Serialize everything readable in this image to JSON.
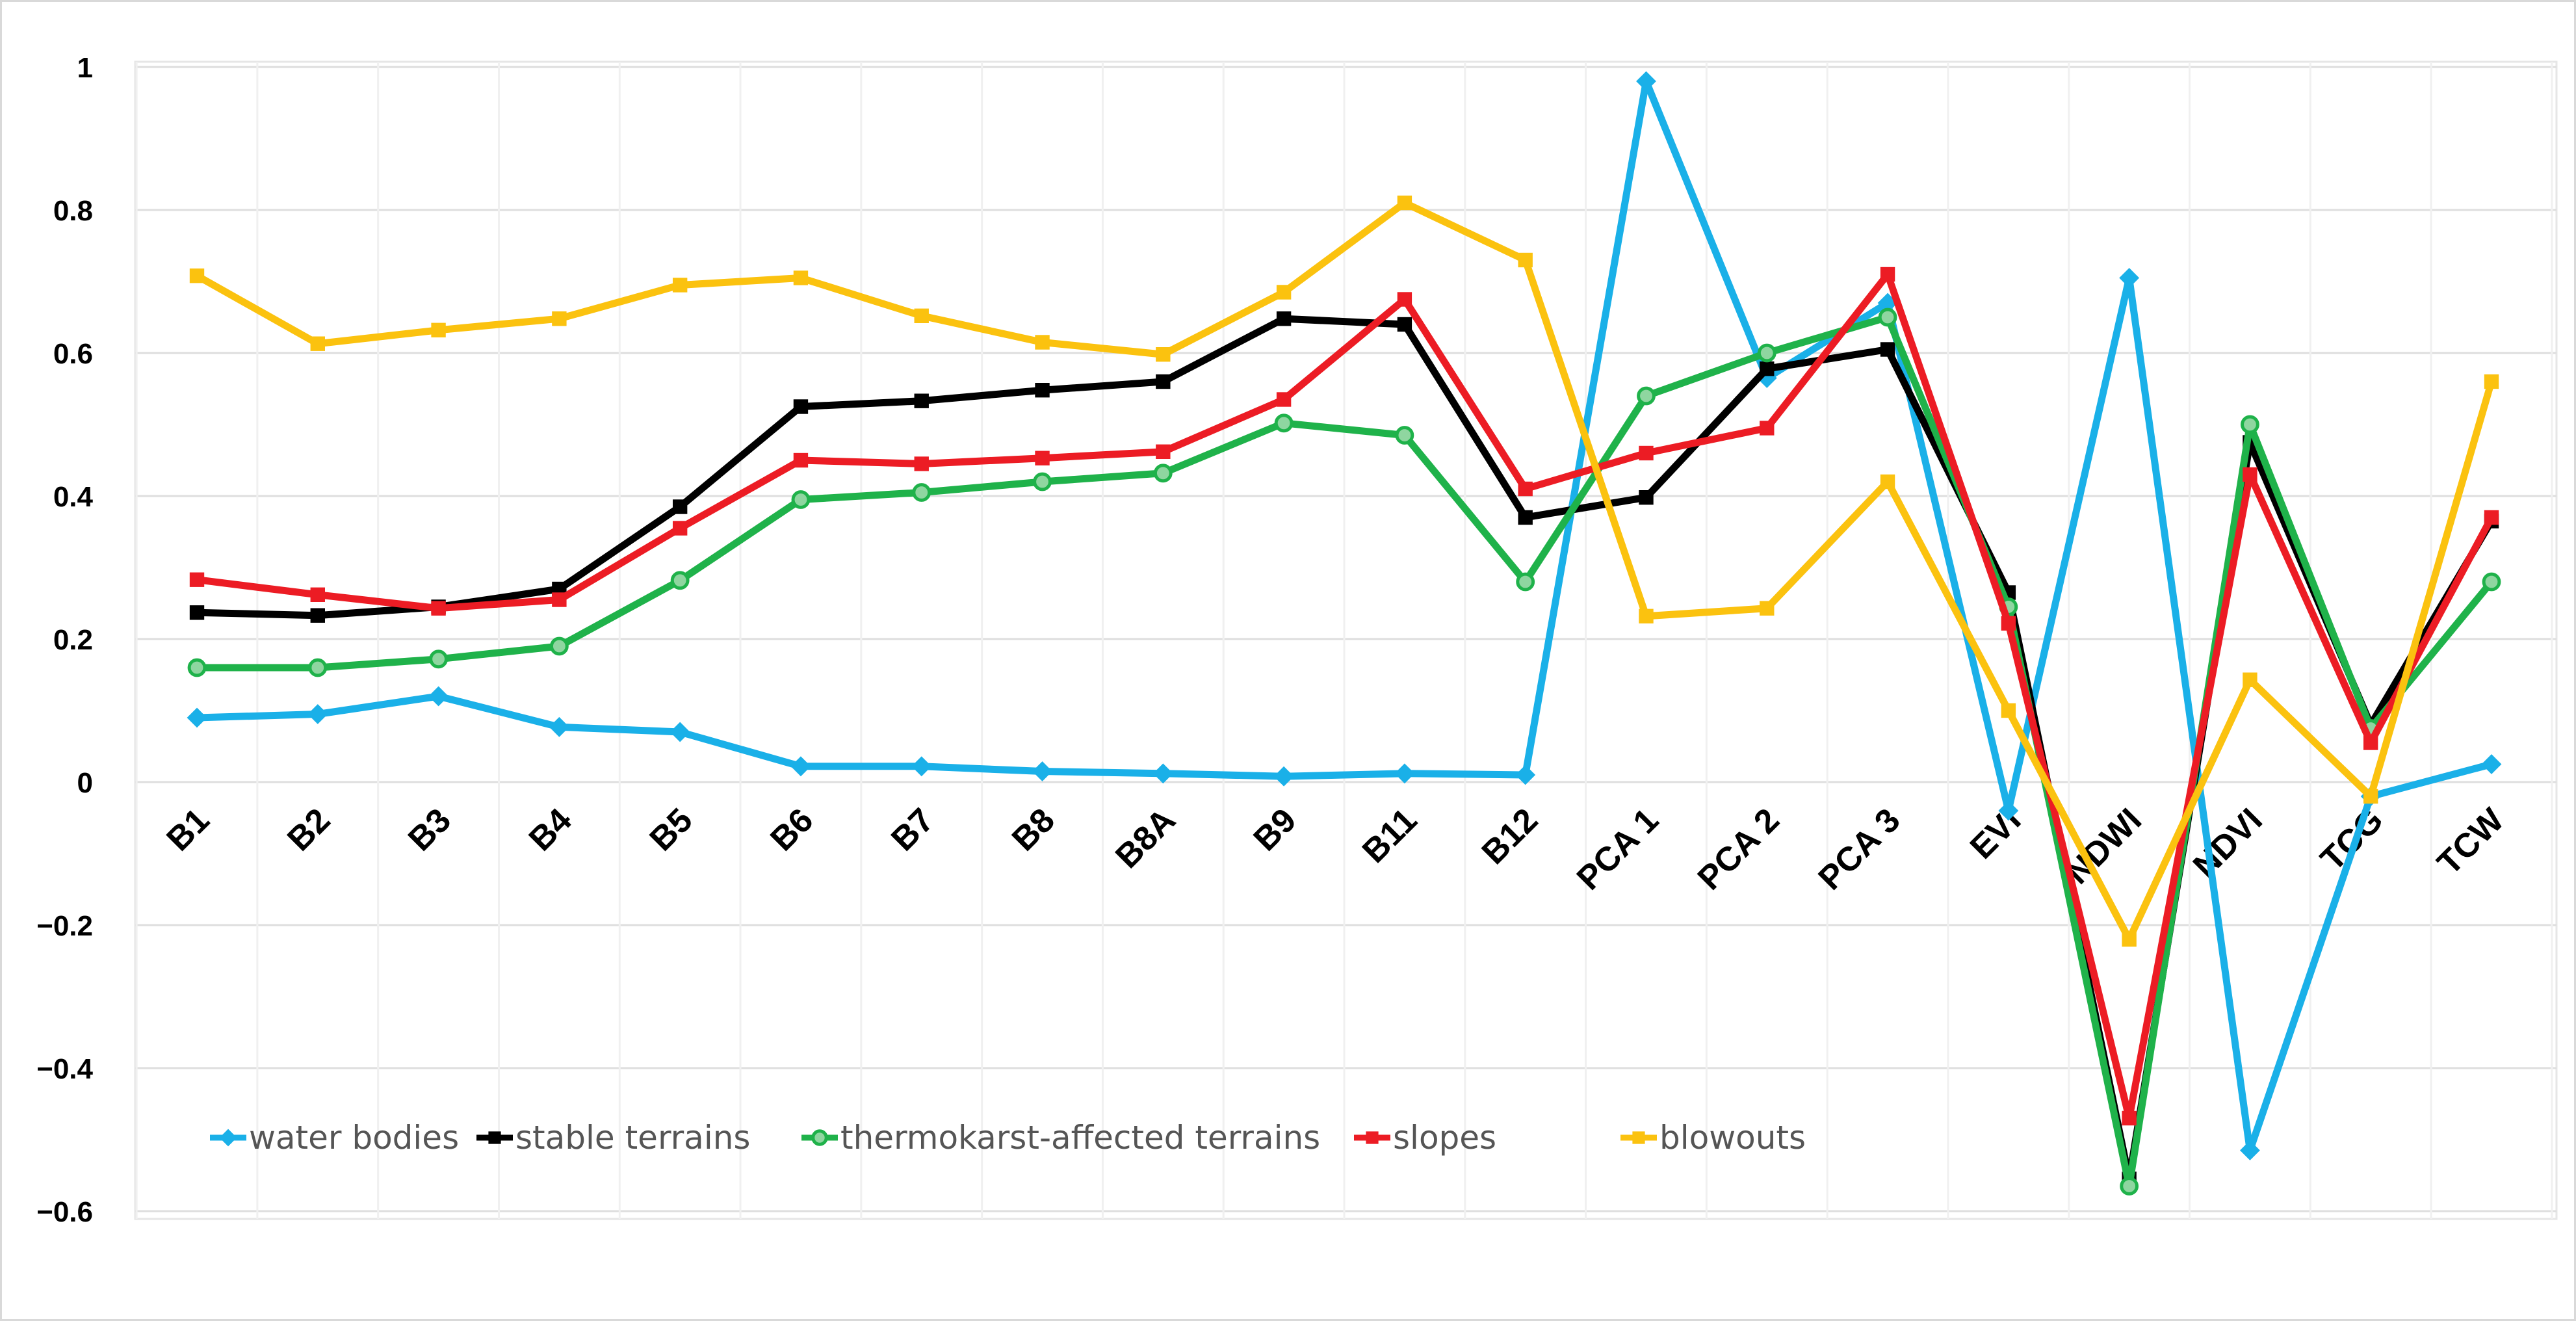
{
  "chart_data": {
    "type": "line",
    "title": "",
    "xlabel": "",
    "ylabel": "",
    "ylim": [
      -0.6,
      1.0
    ],
    "yticks": [
      1,
      0.8,
      0.6,
      0.4,
      0.2,
      0,
      -0.2,
      -0.4,
      -0.6
    ],
    "ytick_labels": [
      "1",
      "0.8",
      "0.6",
      "0.4",
      "0.2",
      "0",
      "−0.2",
      "−0.4",
      "−0.6"
    ],
    "grid": true,
    "legend_position": "bottom-left",
    "categories": [
      "B1",
      "B2",
      "B3",
      "B4",
      "B5",
      "B6",
      "B7",
      "B8",
      "B8A",
      "B9",
      "B11",
      "B12",
      "PCA 1",
      "PCA 2",
      "PCA 3",
      "EVI",
      "NDWI",
      "NDVI",
      "TCG",
      "TCW"
    ],
    "series": [
      {
        "name": "water bodies",
        "color": "#1ab0e8",
        "marker": "diamond",
        "values": [
          0.09,
          0.095,
          0.12,
          0.077,
          0.07,
          0.022,
          0.022,
          0.015,
          0.012,
          0.008,
          0.012,
          0.01,
          0.98,
          0.565,
          0.67,
          -0.04,
          0.705,
          -0.515,
          -0.02,
          0.025
        ]
      },
      {
        "name": "stable terrains",
        "color": "#000000",
        "marker": "square",
        "values": [
          0.237,
          0.233,
          0.245,
          0.27,
          0.385,
          0.525,
          0.533,
          0.548,
          0.56,
          0.648,
          0.64,
          0.37,
          0.398,
          0.578,
          0.605,
          0.265,
          -0.555,
          0.475,
          0.08,
          0.365
        ]
      },
      {
        "name": "thermokarst-affected terrains",
        "color": "#1fb24a",
        "marker": "circle",
        "values": [
          0.16,
          0.16,
          0.172,
          0.19,
          0.282,
          0.395,
          0.405,
          0.42,
          0.432,
          0.502,
          0.485,
          0.28,
          0.54,
          0.6,
          0.65,
          0.245,
          -0.565,
          0.5,
          0.075,
          0.28
        ]
      },
      {
        "name": "slopes",
        "color": "#ec1c24",
        "marker": "square",
        "values": [
          0.283,
          0.262,
          0.243,
          0.255,
          0.355,
          0.45,
          0.445,
          0.453,
          0.462,
          0.535,
          0.675,
          0.41,
          0.46,
          0.495,
          0.71,
          0.222,
          -0.47,
          0.43,
          0.055,
          0.37
        ]
      },
      {
        "name": "blowouts",
        "color": "#fbc20f",
        "marker": "square",
        "values": [
          0.708,
          0.613,
          0.632,
          0.648,
          0.695,
          0.705,
          0.652,
          0.615,
          0.598,
          0.685,
          0.81,
          0.73,
          0.232,
          0.243,
          0.42,
          0.1,
          -0.22,
          0.143,
          -0.02,
          0.56
        ]
      }
    ]
  }
}
